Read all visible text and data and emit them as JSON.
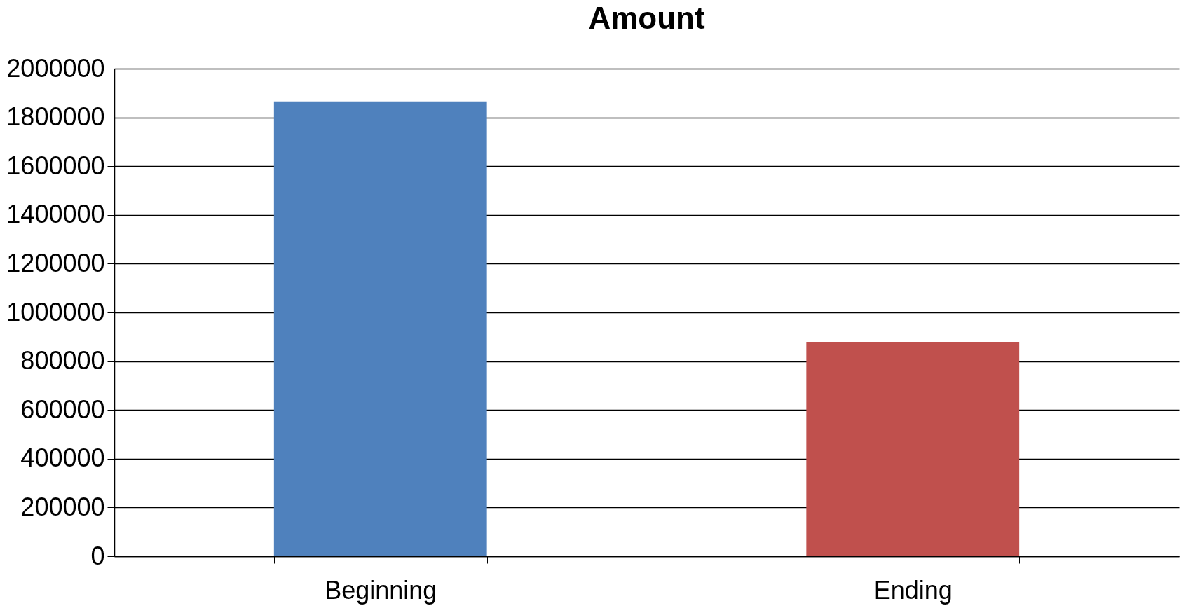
{
  "chart_data": {
    "type": "bar",
    "title": "Amount",
    "categories": [
      "Beginning",
      "Ending"
    ],
    "values": [
      1866000,
      879000
    ],
    "colors": [
      "#4f81bd",
      "#c0504d"
    ],
    "ylim": [
      0,
      2000000
    ],
    "yticks": [
      0,
      200000,
      400000,
      600000,
      800000,
      1000000,
      1200000,
      1400000,
      1600000,
      1800000,
      2000000
    ],
    "grid": "y",
    "legend": false
  }
}
